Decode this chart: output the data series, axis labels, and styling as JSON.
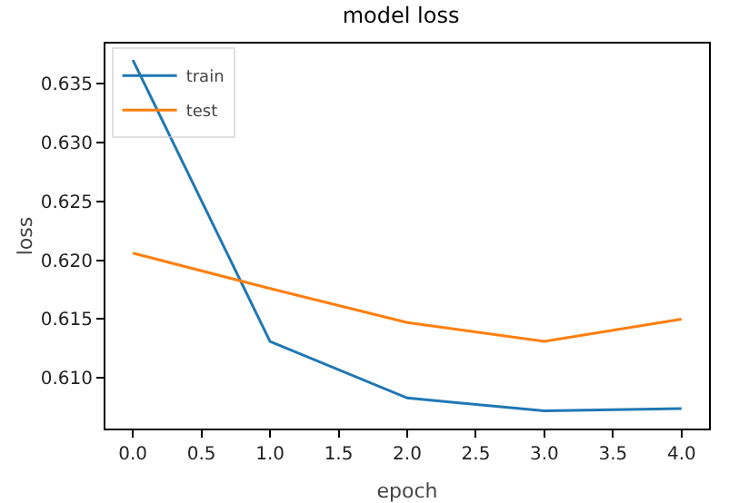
{
  "chart_data": {
    "type": "line",
    "title": "model loss",
    "xlabel": "epoch",
    "ylabel": "loss",
    "x": [
      0,
      1,
      2,
      3,
      4
    ],
    "series": [
      {
        "name": "train",
        "color": "#1f77b4",
        "values": [
          0.637,
          0.6131,
          0.6083,
          0.6072,
          0.6074
        ]
      },
      {
        "name": "test",
        "color": "#ff7f0e",
        "values": [
          0.6206,
          0.6176,
          0.6147,
          0.6131,
          0.615
        ]
      }
    ],
    "xlim": [
      -0.2,
      4.2
    ],
    "xticks": [
      {
        "value": 0,
        "label": "0.0"
      },
      {
        "value": 0.5,
        "label": "0.5"
      },
      {
        "value": 1,
        "label": "1.0"
      },
      {
        "value": 1.5,
        "label": "1.5"
      },
      {
        "value": 2,
        "label": "2.0"
      },
      {
        "value": 2.5,
        "label": "2.5"
      },
      {
        "value": 3,
        "label": "3.0"
      },
      {
        "value": 3.5,
        "label": "3.5"
      },
      {
        "value": 4,
        "label": "4.0"
      }
    ],
    "ylim": [
      0.6057,
      0.6384
    ],
    "yticks": [
      {
        "value": 0.61,
        "label": "0.610"
      },
      {
        "value": 0.615,
        "label": "0.615"
      },
      {
        "value": 0.62,
        "label": "0.620"
      },
      {
        "value": 0.625,
        "label": "0.625"
      },
      {
        "value": 0.63,
        "label": "0.630"
      },
      {
        "value": 0.635,
        "label": "0.635"
      }
    ],
    "grid": false,
    "legend": "top left",
    "marker": "none",
    "line_style": "solid"
  }
}
